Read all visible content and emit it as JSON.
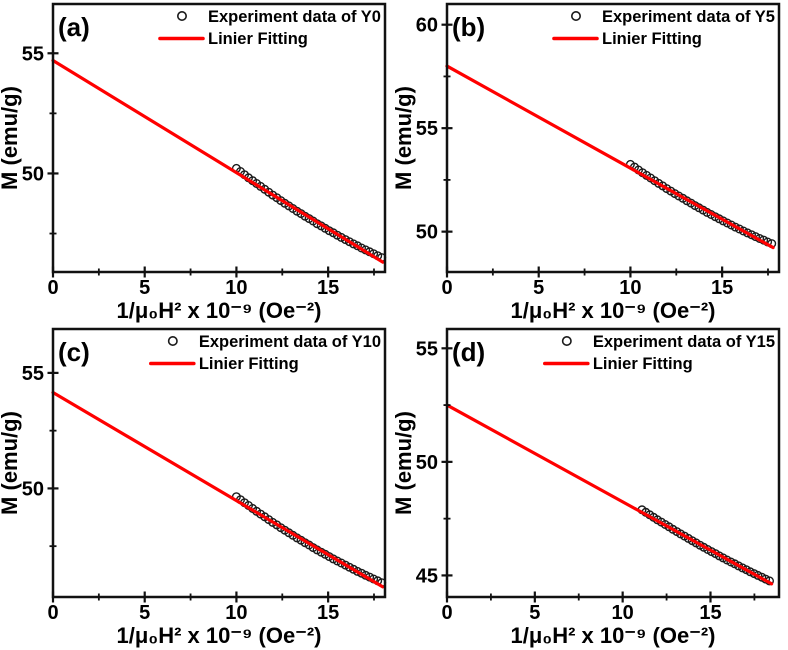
{
  "figure": {
    "background": "#ffffff",
    "fit_color": "#ff0000",
    "marker_color": "#1a1a1a",
    "axis_color": "#111111",
    "text_color": "#000000"
  },
  "chart_data": [
    {
      "type": "scatter",
      "panel_label": "(a)",
      "xlabel": "1/μ₀H² x 10⁻⁹ (Oe⁻²)",
      "ylabel": "M (emu/g)",
      "xlim": [
        0,
        18.1
      ],
      "ylim": [
        45.9,
        57.05
      ],
      "xticks": [
        0,
        5,
        10,
        15
      ],
      "xminorticks": [
        2.5,
        7.5,
        12.5,
        17.5
      ],
      "yticks": [
        50,
        55
      ],
      "yminorticks": [
        47.5,
        52.5
      ],
      "legend": [
        {
          "label": "Experiment data of Y0",
          "marker": "circle"
        },
        {
          "label": "Linier Fitting",
          "marker": "line"
        }
      ],
      "fit_line": {
        "x": [
          0,
          17.98
        ],
        "y": [
          54.7,
          46.31
        ]
      },
      "points": [
        [
          10.0,
          50.21
        ],
        [
          10.22,
          50.08
        ],
        [
          10.44,
          49.95
        ],
        [
          10.66,
          49.82
        ],
        [
          10.88,
          49.7
        ],
        [
          11.1,
          49.58
        ],
        [
          11.32,
          49.46
        ],
        [
          11.54,
          49.34
        ],
        [
          11.76,
          49.22
        ],
        [
          11.98,
          49.1
        ],
        [
          12.2,
          48.99
        ],
        [
          12.42,
          48.87
        ],
        [
          12.64,
          48.76
        ],
        [
          12.86,
          48.65
        ],
        [
          13.08,
          48.54
        ],
        [
          13.3,
          48.43
        ],
        [
          13.52,
          48.33
        ],
        [
          13.74,
          48.22
        ],
        [
          13.96,
          48.12
        ],
        [
          14.18,
          48.02
        ],
        [
          14.4,
          47.91
        ],
        [
          14.62,
          47.82
        ],
        [
          14.84,
          47.72
        ],
        [
          15.06,
          47.62
        ],
        [
          15.28,
          47.53
        ],
        [
          15.5,
          47.43
        ],
        [
          15.72,
          47.34
        ],
        [
          15.94,
          47.25
        ],
        [
          16.16,
          47.16
        ],
        [
          16.38,
          47.07
        ],
        [
          16.6,
          46.99
        ],
        [
          16.82,
          46.9
        ],
        [
          17.04,
          46.82
        ],
        [
          17.26,
          46.74
        ],
        [
          17.48,
          46.66
        ],
        [
          17.7,
          46.58
        ],
        [
          17.92,
          46.5
        ]
      ]
    },
    {
      "type": "scatter",
      "panel_label": "(b)",
      "xlabel": "1/μ₀H² x 10⁻⁹ (Oe⁻²)",
      "ylabel": "M (emu/g)",
      "xlim": [
        0,
        18.1
      ],
      "ylim": [
        48.05,
        61.0
      ],
      "xticks": [
        0,
        5,
        10,
        15
      ],
      "xminorticks": [
        2.5,
        7.5,
        12.5,
        17.5
      ],
      "yticks": [
        50,
        55,
        60
      ],
      "yminorticks": [
        52.5,
        57.5
      ],
      "legend": [
        {
          "label": "Experiment data of Y5",
          "marker": "circle"
        },
        {
          "label": "Linier Fitting",
          "marker": "line"
        }
      ],
      "fit_line": {
        "x": [
          0,
          17.78
        ],
        "y": [
          58.0,
          49.23
        ]
      },
      "points": [
        [
          10.0,
          53.25
        ],
        [
          10.22,
          53.12
        ],
        [
          10.44,
          52.98
        ],
        [
          10.66,
          52.85
        ],
        [
          10.88,
          52.72
        ],
        [
          11.1,
          52.59
        ],
        [
          11.32,
          52.46
        ],
        [
          11.54,
          52.33
        ],
        [
          11.76,
          52.21
        ],
        [
          11.98,
          52.08
        ],
        [
          12.2,
          51.96
        ],
        [
          12.42,
          51.84
        ],
        [
          12.64,
          51.72
        ],
        [
          12.86,
          51.61
        ],
        [
          13.08,
          51.49
        ],
        [
          13.3,
          51.38
        ],
        [
          13.52,
          51.26
        ],
        [
          13.74,
          51.15
        ],
        [
          13.96,
          51.04
        ],
        [
          14.18,
          50.93
        ],
        [
          14.4,
          50.83
        ],
        [
          14.62,
          50.72
        ],
        [
          14.84,
          50.62
        ],
        [
          15.06,
          50.52
        ],
        [
          15.28,
          50.42
        ],
        [
          15.5,
          50.32
        ],
        [
          15.72,
          50.22
        ],
        [
          15.94,
          50.13
        ],
        [
          16.16,
          50.03
        ],
        [
          16.38,
          49.94
        ],
        [
          16.6,
          49.85
        ],
        [
          16.82,
          49.76
        ],
        [
          17.04,
          49.67
        ],
        [
          17.26,
          49.59
        ],
        [
          17.48,
          49.5
        ],
        [
          17.7,
          49.42
        ]
      ]
    },
    {
      "type": "scatter",
      "panel_label": "(c)",
      "xlabel": "1/μ₀H² x 10⁻⁹ (Oe⁻²)",
      "ylabel": "M (emu/g)",
      "xlim": [
        0,
        18.1
      ],
      "ylim": [
        45.3,
        56.9
      ],
      "xticks": [
        0,
        5,
        10,
        15
      ],
      "xminorticks": [
        2.5,
        7.5,
        12.5,
        17.5
      ],
      "yticks": [
        50,
        55
      ],
      "yminorticks": [
        47.5,
        52.5
      ],
      "legend": [
        {
          "label": "Experiment data of Y10",
          "marker": "circle"
        },
        {
          "label": "Linier Fitting",
          "marker": "line"
        }
      ],
      "fit_line": {
        "x": [
          0,
          17.98
        ],
        "y": [
          54.15,
          45.74
        ]
      },
      "points": [
        [
          10.0,
          49.64
        ],
        [
          10.22,
          49.51
        ],
        [
          10.44,
          49.38
        ],
        [
          10.66,
          49.26
        ],
        [
          10.88,
          49.13
        ],
        [
          11.1,
          49.01
        ],
        [
          11.32,
          48.89
        ],
        [
          11.54,
          48.77
        ],
        [
          11.76,
          48.65
        ],
        [
          11.98,
          48.53
        ],
        [
          12.2,
          48.42
        ],
        [
          12.42,
          48.3
        ],
        [
          12.64,
          48.19
        ],
        [
          12.86,
          48.08
        ],
        [
          13.08,
          47.97
        ],
        [
          13.3,
          47.86
        ],
        [
          13.52,
          47.76
        ],
        [
          13.74,
          47.65
        ],
        [
          13.96,
          47.55
        ],
        [
          14.18,
          47.44
        ],
        [
          14.4,
          47.34
        ],
        [
          14.62,
          47.24
        ],
        [
          14.84,
          47.15
        ],
        [
          15.06,
          47.05
        ],
        [
          15.28,
          46.95
        ],
        [
          15.5,
          46.86
        ],
        [
          15.72,
          46.77
        ],
        [
          15.94,
          46.68
        ],
        [
          16.16,
          46.59
        ],
        [
          16.38,
          46.5
        ],
        [
          16.6,
          46.41
        ],
        [
          16.82,
          46.33
        ],
        [
          17.04,
          46.24
        ],
        [
          17.26,
          46.16
        ],
        [
          17.48,
          46.08
        ],
        [
          17.7,
          46.0
        ],
        [
          17.92,
          45.92
        ]
      ]
    },
    {
      "type": "scatter",
      "panel_label": "(d)",
      "xlabel": "1/μ₀H² x 10⁻⁹ (Oe⁻²)",
      "ylabel": "M (emu/g)",
      "xlim": [
        0,
        18.9
      ],
      "ylim": [
        44.05,
        55.85
      ],
      "xticks": [
        0,
        5,
        10,
        15
      ],
      "xminorticks": [
        2.5,
        7.5,
        12.5,
        17.5
      ],
      "yticks": [
        45,
        50,
        55
      ],
      "yminorticks": [
        47.5,
        52.5
      ],
      "legend": [
        {
          "label": "Experiment data of Y15",
          "marker": "circle"
        },
        {
          "label": "Linier Fitting",
          "marker": "line"
        }
      ],
      "fit_line": {
        "x": [
          0,
          18.48
        ],
        "y": [
          52.5,
          44.63
        ]
      },
      "points": [
        [
          11.1,
          47.89
        ],
        [
          11.32,
          47.78
        ],
        [
          11.54,
          47.67
        ],
        [
          11.76,
          47.56
        ],
        [
          11.98,
          47.45
        ],
        [
          12.2,
          47.35
        ],
        [
          12.42,
          47.24
        ],
        [
          12.64,
          47.14
        ],
        [
          12.86,
          47.03
        ],
        [
          13.08,
          46.93
        ],
        [
          13.3,
          46.83
        ],
        [
          13.52,
          46.73
        ],
        [
          13.74,
          46.63
        ],
        [
          13.96,
          46.53
        ],
        [
          14.18,
          46.43
        ],
        [
          14.4,
          46.33
        ],
        [
          14.62,
          46.24
        ],
        [
          14.84,
          46.14
        ],
        [
          15.06,
          46.05
        ],
        [
          15.28,
          45.96
        ],
        [
          15.5,
          45.86
        ],
        [
          15.72,
          45.77
        ],
        [
          15.94,
          45.68
        ],
        [
          16.16,
          45.59
        ],
        [
          16.38,
          45.51
        ],
        [
          16.6,
          45.42
        ],
        [
          16.82,
          45.33
        ],
        [
          17.04,
          45.25
        ],
        [
          17.26,
          45.16
        ],
        [
          17.48,
          45.08
        ],
        [
          17.7,
          45.0
        ],
        [
          17.92,
          44.92
        ],
        [
          18.14,
          44.84
        ],
        [
          18.36,
          44.76
        ]
      ]
    }
  ]
}
